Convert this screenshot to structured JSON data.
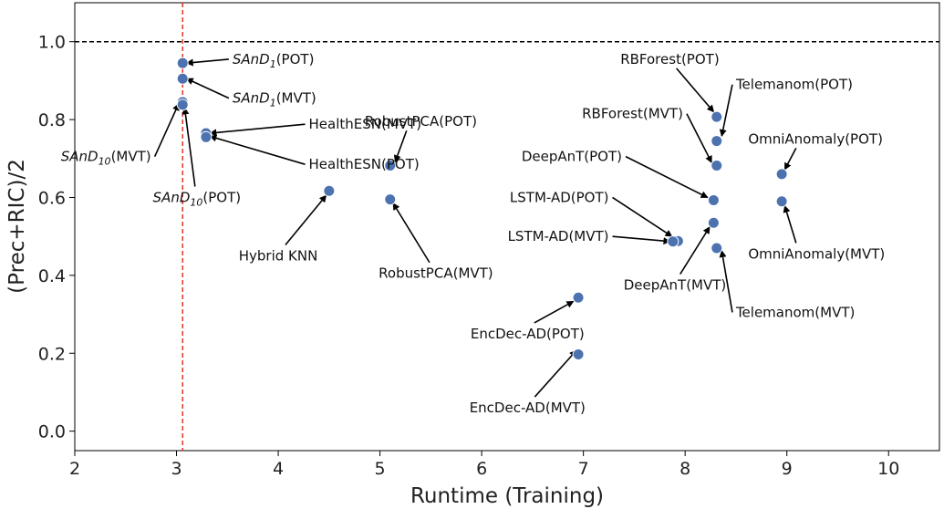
{
  "chart_data": {
    "type": "scatter",
    "xlabel": "Runtime (Training)",
    "ylabel": "(Prec+RIC)/2",
    "xlim": [
      2,
      10.5
    ],
    "ylim": [
      -0.05,
      1.1
    ],
    "xticks": [
      "2",
      "3",
      "4",
      "5",
      "6",
      "7",
      "8",
      "9",
      "10"
    ],
    "yticks": [
      "0.0",
      "0.2",
      "0.4",
      "0.6",
      "0.8",
      "1.0"
    ],
    "reference_lines": [
      {
        "orientation": "horizontal",
        "value": 1.0,
        "style": "dashed",
        "color": "#000000"
      },
      {
        "orientation": "vertical",
        "value": 3.06,
        "style": "dashed",
        "color": "#e8322b"
      }
    ],
    "marker_color": "#4c72b0",
    "points": [
      {
        "x": 3.06,
        "y": 0.945,
        "label": "SAnD1(POT)"
      },
      {
        "x": 3.06,
        "y": 0.905,
        "label": "SAnD1(MVT)"
      },
      {
        "x": 3.06,
        "y": 0.845,
        "label": "SAnD10(MVT)"
      },
      {
        "x": 3.06,
        "y": 0.838,
        "label": "SAnD10(POT)"
      },
      {
        "x": 3.29,
        "y": 0.765,
        "label": "HealthESN(MVT)"
      },
      {
        "x": 3.29,
        "y": 0.755,
        "label": "HealthESN(POT)"
      },
      {
        "x": 4.5,
        "y": 0.617,
        "label": "Hybrid KNN"
      },
      {
        "x": 5.1,
        "y": 0.682,
        "label": "RobustPCA(POT)"
      },
      {
        "x": 5.1,
        "y": 0.595,
        "label": "RobustPCA(MVT)"
      },
      {
        "x": 6.95,
        "y": 0.343,
        "label": "EncDec-AD(POT)"
      },
      {
        "x": 6.95,
        "y": 0.197,
        "label": "EncDec-AD(MVT)"
      },
      {
        "x": 7.93,
        "y": 0.488,
        "label": "LSTM-AD(POT)"
      },
      {
        "x": 7.88,
        "y": 0.487,
        "label": "LSTM-AD(MVT)"
      },
      {
        "x": 8.28,
        "y": 0.593,
        "label": "DeepAnT(POT)"
      },
      {
        "x": 8.28,
        "y": 0.535,
        "label": "DeepAnT(MVT)"
      },
      {
        "x": 8.31,
        "y": 0.807,
        "label": "RBForest(POT)"
      },
      {
        "x": 8.31,
        "y": 0.682,
        "label": "RBForest(MVT)"
      },
      {
        "x": 8.31,
        "y": 0.745,
        "label": "Telemanom(POT)"
      },
      {
        "x": 8.31,
        "y": 0.47,
        "label": "Telemanom(MVT)"
      },
      {
        "x": 8.95,
        "y": 0.66,
        "label": "OmniAnomaly(POT)"
      },
      {
        "x": 8.95,
        "y": 0.59,
        "label": "OmniAnomaly(MVT)"
      }
    ],
    "annotations": [
      {
        "main": "SAnD",
        "sub": "1",
        "suffix": "(POT)",
        "italic": true,
        "anchor": "start",
        "tx": 3.55,
        "ty": 0.955,
        "ax": 3.1,
        "ay": 0.945
      },
      {
        "main": "SAnD",
        "sub": "1",
        "suffix": "(MVT)",
        "italic": true,
        "anchor": "start",
        "tx": 3.55,
        "ty": 0.855,
        "ax": 3.1,
        "ay": 0.905
      },
      {
        "main": "SAnD",
        "sub": "10",
        "suffix": "(MVT)",
        "italic": true,
        "anchor": "end",
        "tx": 2.75,
        "ty": 0.705,
        "ax": 3.02,
        "ay": 0.84
      },
      {
        "main": "SAnD",
        "sub": "10",
        "suffix": "(POT)",
        "italic": true,
        "anchor": "middle",
        "tx": 3.2,
        "ty": 0.6,
        "ax": 3.08,
        "ay": 0.83
      },
      {
        "main": "HealthESN(MVT)",
        "anchor": "start",
        "tx": 4.3,
        "ty": 0.788,
        "ax": 3.33,
        "ay": 0.765
      },
      {
        "main": "HealthESN(POT)",
        "anchor": "start",
        "tx": 4.3,
        "ty": 0.685,
        "ax": 3.33,
        "ay": 0.757
      },
      {
        "main": "Hybrid KNN",
        "anchor": "middle",
        "tx": 4.0,
        "ty": 0.45,
        "ax": 4.47,
        "ay": 0.605
      },
      {
        "main": "RobustPCA(POT)",
        "anchor": "start",
        "tx": 4.85,
        "ty": 0.795,
        "ax": 5.15,
        "ay": 0.692
      },
      {
        "main": "RobustPCA(MVT)",
        "anchor": "middle",
        "tx": 5.55,
        "ty": 0.405,
        "ax": 5.13,
        "ay": 0.585
      },
      {
        "main": "EncDec-AD(POT)",
        "anchor": "middle",
        "tx": 6.45,
        "ty": 0.25,
        "ax": 6.9,
        "ay": 0.333
      },
      {
        "main": "EncDec-AD(MVT)",
        "anchor": "middle",
        "tx": 6.45,
        "ty": 0.06,
        "ax": 6.93,
        "ay": 0.207
      },
      {
        "main": "LSTM-AD(POT)",
        "anchor": "end",
        "tx": 7.25,
        "ty": 0.6,
        "ax": 7.87,
        "ay": 0.5
      },
      {
        "main": "LSTM-AD(MVT)",
        "anchor": "end",
        "tx": 7.25,
        "ty": 0.5,
        "ax": 7.85,
        "ay": 0.487
      },
      {
        "main": "DeepAnT(POT)",
        "anchor": "end",
        "tx": 7.38,
        "ty": 0.705,
        "ax": 8.22,
        "ay": 0.6
      },
      {
        "main": "DeepAnT(MVT)",
        "anchor": "middle",
        "tx": 7.9,
        "ty": 0.375,
        "ax": 8.24,
        "ay": 0.524
      },
      {
        "main": "RBForest(POT)",
        "anchor": "middle",
        "tx": 7.85,
        "ty": 0.955,
        "ax": 8.28,
        "ay": 0.82
      },
      {
        "main": "RBForest(MVT)",
        "anchor": "end",
        "tx": 7.98,
        "ty": 0.815,
        "ax": 8.26,
        "ay": 0.69
      },
      {
        "main": "Telemanom(POT)",
        "anchor": "start",
        "tx": 8.5,
        "ty": 0.89,
        "ax": 8.36,
        "ay": 0.758
      },
      {
        "main": "Telemanom(MVT)",
        "anchor": "start",
        "tx": 8.5,
        "ty": 0.305,
        "ax": 8.36,
        "ay": 0.463
      },
      {
        "main": "OmniAnomaly(POT)",
        "anchor": "start",
        "tx": 8.62,
        "ty": 0.75,
        "ax": 8.98,
        "ay": 0.672
      },
      {
        "main": "OmniAnomaly(MVT)",
        "anchor": "start",
        "tx": 8.62,
        "ty": 0.455,
        "ax": 8.98,
        "ay": 0.578
      }
    ]
  }
}
